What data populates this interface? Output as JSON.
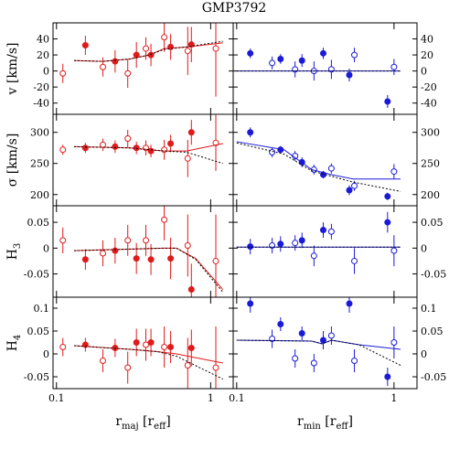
{
  "title": "GMP3792",
  "chart_data": [
    {
      "type": "scatter",
      "xlog": true,
      "xlim": [
        0.095,
        1.4
      ],
      "xticks": [
        0.1,
        1
      ],
      "ylim": [
        -54,
        60
      ],
      "yticks": [
        -40,
        -20,
        0,
        20,
        40
      ],
      "ytick_side": "left",
      "ylabel_parts": [
        {
          "t": "v [km/s]"
        }
      ],
      "series": [
        {
          "style": "filled",
          "color": "#e01a1a",
          "x": [
            0.154,
            0.24,
            0.33,
            0.41,
            0.55,
            0.75
          ],
          "values": [
            32,
            12,
            20,
            20,
            30,
            33
          ],
          "errors": [
            12,
            14,
            16,
            14,
            16,
            22
          ]
        },
        {
          "style": "open",
          "color": "#e01a1a",
          "x": [
            0.11,
            0.2,
            0.29,
            0.38,
            0.5,
            0.71,
            1.08
          ],
          "values": [
            -3,
            5,
            -3,
            28,
            42,
            25,
            28
          ],
          "errors": [
            12,
            12,
            18,
            14,
            18,
            30,
            60
          ]
        },
        {
          "style": "solid",
          "color": "#e01a1a",
          "x": [
            0.13,
            0.2,
            0.3,
            0.4,
            0.5,
            0.7,
            1.2
          ],
          "values": [
            13,
            12,
            15,
            20,
            28,
            30,
            35
          ]
        },
        {
          "style": "dashed",
          "color": "#000000",
          "x": [
            0.13,
            0.2,
            0.3,
            0.4,
            0.5,
            0.7,
            1.2
          ],
          "values": [
            13,
            12,
            15,
            20,
            27,
            30,
            37
          ]
        }
      ]
    },
    {
      "type": "scatter",
      "xlog": true,
      "xlim": [
        0.095,
        1.4
      ],
      "xticks": [
        0.1,
        1
      ],
      "ylim": [
        -54,
        60
      ],
      "yticks": [
        -40,
        -20,
        0,
        20,
        40
      ],
      "ytick_side": "right",
      "series": [
        {
          "style": "filled",
          "color": "#1a1ad8",
          "x": [
            0.122,
            0.19,
            0.26,
            0.355,
            0.52,
            0.91
          ],
          "values": [
            22,
            15,
            13,
            22,
            -5,
            -38
          ],
          "errors": [
            6,
            6,
            8,
            7,
            8,
            8
          ]
        },
        {
          "style": "open",
          "color": "#1a1ad8",
          "x": [
            0.168,
            0.235,
            0.31,
            0.4,
            0.56,
            1.0
          ],
          "values": [
            10,
            2,
            0,
            2,
            20,
            5
          ],
          "errors": [
            8,
            10,
            12,
            12,
            9,
            10
          ]
        },
        {
          "style": "solid",
          "color": "#1a1ad8",
          "x": [
            0.1,
            0.3,
            0.6,
            1.1
          ],
          "values": [
            0,
            0,
            0,
            0
          ]
        },
        {
          "style": "dashed",
          "color": "#000000",
          "x": [
            0.1,
            0.3,
            0.6,
            1.1
          ],
          "values": [
            0,
            0,
            0,
            0
          ]
        }
      ]
    },
    {
      "type": "scatter",
      "xlog": true,
      "xlim": [
        0.095,
        1.4
      ],
      "xticks": [
        0.1,
        1
      ],
      "ylim": [
        182,
        329
      ],
      "yticks": [
        200,
        250,
        300
      ],
      "ytick_side": "left",
      "ylabel_parts": [
        {
          "t": "σ [km/s]"
        }
      ],
      "series": [
        {
          "style": "filled",
          "color": "#e01a1a",
          "x": [
            0.154,
            0.24,
            0.33,
            0.41,
            0.55,
            0.75
          ],
          "values": [
            275,
            277,
            275,
            270,
            282,
            300
          ],
          "errors": [
            8,
            10,
            10,
            10,
            14,
            20
          ]
        },
        {
          "style": "open",
          "color": "#e01a1a",
          "x": [
            0.11,
            0.2,
            0.29,
            0.38,
            0.5,
            0.71,
            1.08
          ],
          "values": [
            272,
            280,
            290,
            275,
            272,
            258,
            283
          ],
          "errors": [
            8,
            10,
            14,
            12,
            16,
            30,
            45
          ]
        },
        {
          "style": "solid",
          "color": "#e01a1a",
          "x": [
            0.13,
            0.3,
            0.5,
            0.7,
            1.2
          ],
          "values": [
            277,
            275,
            270,
            270,
            282
          ]
        },
        {
          "style": "dashed",
          "color": "#000000",
          "x": [
            0.13,
            0.3,
            0.5,
            0.7,
            1.2
          ],
          "values": [
            277,
            275,
            270,
            268,
            250
          ]
        }
      ]
    },
    {
      "type": "scatter",
      "xlog": true,
      "xlim": [
        0.095,
        1.4
      ],
      "xticks": [
        0.1,
        1
      ],
      "ylim": [
        182,
        329
      ],
      "yticks": [
        200,
        250,
        300
      ],
      "ytick_side": "right",
      "series": [
        {
          "style": "filled",
          "color": "#1a1ad8",
          "x": [
            0.122,
            0.19,
            0.26,
            0.355,
            0.52,
            0.91
          ],
          "values": [
            300,
            272,
            252,
            232,
            207,
            197
          ],
          "errors": [
            8,
            6,
            8,
            6,
            8,
            6
          ]
        },
        {
          "style": "open",
          "color": "#1a1ad8",
          "x": [
            0.168,
            0.235,
            0.31,
            0.4,
            0.56,
            1.0
          ],
          "values": [
            268,
            262,
            240,
            242,
            214,
            237
          ],
          "errors": [
            8,
            8,
            8,
            8,
            8,
            12
          ]
        },
        {
          "style": "solid",
          "color": "#1a1ad8",
          "x": [
            0.1,
            0.2,
            0.3,
            0.4,
            0.55,
            1.1
          ],
          "values": [
            285,
            272,
            240,
            232,
            225,
            225
          ]
        },
        {
          "style": "dashed",
          "color": "#000000",
          "x": [
            0.1,
            0.2,
            0.3,
            0.55,
            1.1
          ],
          "values": [
            283,
            265,
            238,
            220,
            205
          ]
        }
      ]
    },
    {
      "type": "scatter",
      "xlog": true,
      "xlim": [
        0.095,
        1.4
      ],
      "xticks": [
        0.1,
        1
      ],
      "ylim": [
        -0.095,
        0.082
      ],
      "yticks": [
        -0.05,
        0,
        0.05
      ],
      "ytick_side": "left",
      "ylabel_parts": [
        {
          "t": "H"
        },
        {
          "t": "3",
          "sub": true
        }
      ],
      "series": [
        {
          "style": "filled",
          "color": "#e01a1a",
          "x": [
            0.154,
            0.24,
            0.33,
            0.41,
            0.55,
            0.75
          ],
          "values": [
            -0.022,
            -0.005,
            -0.02,
            -0.022,
            -0.02,
            -0.08
          ],
          "errors": [
            0.02,
            0.025,
            0.03,
            0.03,
            0.04,
            0.05
          ]
        },
        {
          "style": "open",
          "color": "#e01a1a",
          "x": [
            0.11,
            0.2,
            0.29,
            0.38,
            0.5,
            0.71,
            1.08
          ],
          "values": [
            0.015,
            -0.01,
            0.015,
            0.015,
            0.055,
            0.005,
            -0.025
          ],
          "errors": [
            0.025,
            0.025,
            0.03,
            0.03,
            0.04,
            0.06,
            0.09
          ]
        },
        {
          "style": "solid",
          "color": "#e01a1a",
          "x": [
            0.13,
            0.5,
            0.6,
            0.8,
            1.2
          ],
          "values": [
            -0.005,
            0,
            0,
            -0.02,
            -0.08
          ]
        },
        {
          "style": "dashed",
          "color": "#000000",
          "x": [
            0.13,
            0.5,
            0.6,
            0.8,
            1.2
          ],
          "values": [
            -0.005,
            0,
            0,
            -0.022,
            -0.085
          ]
        }
      ]
    },
    {
      "type": "scatter",
      "xlog": true,
      "xlim": [
        0.095,
        1.4
      ],
      "xticks": [
        0.1,
        1
      ],
      "ylim": [
        -0.095,
        0.082
      ],
      "yticks": [
        -0.05,
        0,
        0.05
      ],
      "ytick_side": "right",
      "series": [
        {
          "style": "filled",
          "color": "#1a1ad8",
          "x": [
            0.122,
            0.19,
            0.26,
            0.355,
            0.91
          ],
          "values": [
            0.003,
            0.008,
            0.015,
            0.035,
            0.05
          ],
          "errors": [
            0.015,
            0.015,
            0.015,
            0.015,
            0.02
          ]
        },
        {
          "style": "open",
          "color": "#1a1ad8",
          "x": [
            0.168,
            0.235,
            0.31,
            0.4,
            0.56,
            1.0
          ],
          "values": [
            0.005,
            0.01,
            -0.015,
            0.032,
            -0.025,
            -0.005
          ],
          "errors": [
            0.015,
            0.015,
            0.02,
            0.015,
            0.025,
            0.03
          ]
        },
        {
          "style": "solid",
          "color": "#1a1ad8",
          "x": [
            0.1,
            0.5,
            1.1
          ],
          "values": [
            0.002,
            0.002,
            0.002
          ]
        },
        {
          "style": "dashed",
          "color": "#000000",
          "x": [
            0.1,
            0.5,
            1.1
          ],
          "values": [
            0.002,
            0.002,
            0.002
          ]
        }
      ]
    },
    {
      "type": "scatter",
      "xlog": true,
      "xlim": [
        0.095,
        1.4
      ],
      "xticks": [
        0.1,
        1
      ],
      "ylim": [
        -0.076,
        0.124
      ],
      "yticks": [
        -0.05,
        0,
        0.05,
        0.1
      ],
      "ytick_side": "left",
      "ylabel_parts": [
        {
          "t": "H"
        },
        {
          "t": "4",
          "sub": true
        }
      ],
      "xlabel_parts": [
        {
          "t": "r"
        },
        {
          "t": "maj",
          "sub": true
        },
        {
          "t": " [r"
        },
        {
          "t": "eff",
          "sub": true
        },
        {
          "t": "]"
        }
      ],
      "xtick_labels": true,
      "series": [
        {
          "style": "filled",
          "color": "#e01a1a",
          "x": [
            0.154,
            0.24,
            0.33,
            0.41,
            0.55,
            0.75
          ],
          "values": [
            0.02,
            0.013,
            0.025,
            0.025,
            0.015,
            0.013
          ],
          "errors": [
            0.015,
            0.02,
            0.03,
            0.03,
            0.035,
            0.04
          ]
        },
        {
          "style": "open",
          "color": "#e01a1a",
          "x": [
            0.11,
            0.2,
            0.29,
            0.38,
            0.5,
            0.71,
            1.08
          ],
          "values": [
            0.015,
            -0.015,
            -0.03,
            0.02,
            0.015,
            -0.025,
            -0.03
          ],
          "errors": [
            0.02,
            0.025,
            0.035,
            0.035,
            0.045,
            0.06,
            0.09
          ]
        },
        {
          "style": "solid",
          "color": "#e01a1a",
          "x": [
            0.13,
            0.3,
            0.45,
            0.6,
            1.2
          ],
          "values": [
            0.018,
            0.01,
            0.005,
            0,
            -0.02
          ]
        },
        {
          "style": "dashed",
          "color": "#000000",
          "x": [
            0.13,
            0.3,
            0.45,
            0.6,
            1.2
          ],
          "values": [
            0.018,
            0.01,
            0.005,
            -0.005,
            -0.055
          ]
        }
      ]
    },
    {
      "type": "scatter",
      "xlog": true,
      "xlim": [
        0.095,
        1.4
      ],
      "xticks": [
        0.1,
        1
      ],
      "ylim": [
        -0.076,
        0.124
      ],
      "yticks": [
        -0.05,
        0,
        0.05,
        0.1
      ],
      "ytick_side": "right",
      "xlabel_parts": [
        {
          "t": "r"
        },
        {
          "t": "min",
          "sub": true
        },
        {
          "t": " [r"
        },
        {
          "t": "eff",
          "sub": true
        },
        {
          "t": "]"
        }
      ],
      "xtick_labels": true,
      "series": [
        {
          "style": "filled",
          "color": "#1a1ad8",
          "x": [
            0.122,
            0.19,
            0.26,
            0.355,
            0.52,
            0.91
          ],
          "values": [
            0.11,
            0.065,
            0.045,
            0.03,
            0.11,
            -0.05
          ],
          "errors": [
            0.02,
            0.015,
            0.015,
            0.02,
            0.02,
            0.02
          ]
        },
        {
          "style": "open",
          "color": "#1a1ad8",
          "x": [
            0.168,
            0.235,
            0.31,
            0.4,
            0.56,
            1.0
          ],
          "values": [
            0.033,
            -0.01,
            -0.02,
            0.04,
            -0.015,
            0.025
          ],
          "errors": [
            0.02,
            0.02,
            0.02,
            0.02,
            0.025,
            0.035
          ]
        },
        {
          "style": "solid",
          "color": "#1a1ad8",
          "x": [
            0.1,
            0.3,
            0.35,
            0.4,
            0.6,
            1.1
          ],
          "values": [
            0.03,
            0.028,
            0.022,
            0.03,
            0.02,
            0.01
          ]
        },
        {
          "style": "dashed",
          "color": "#000000",
          "x": [
            0.1,
            0.3,
            0.35,
            0.4,
            0.6,
            1.1
          ],
          "values": [
            0.03,
            0.028,
            0.022,
            0.03,
            0.02,
            -0.025
          ]
        }
      ]
    }
  ]
}
